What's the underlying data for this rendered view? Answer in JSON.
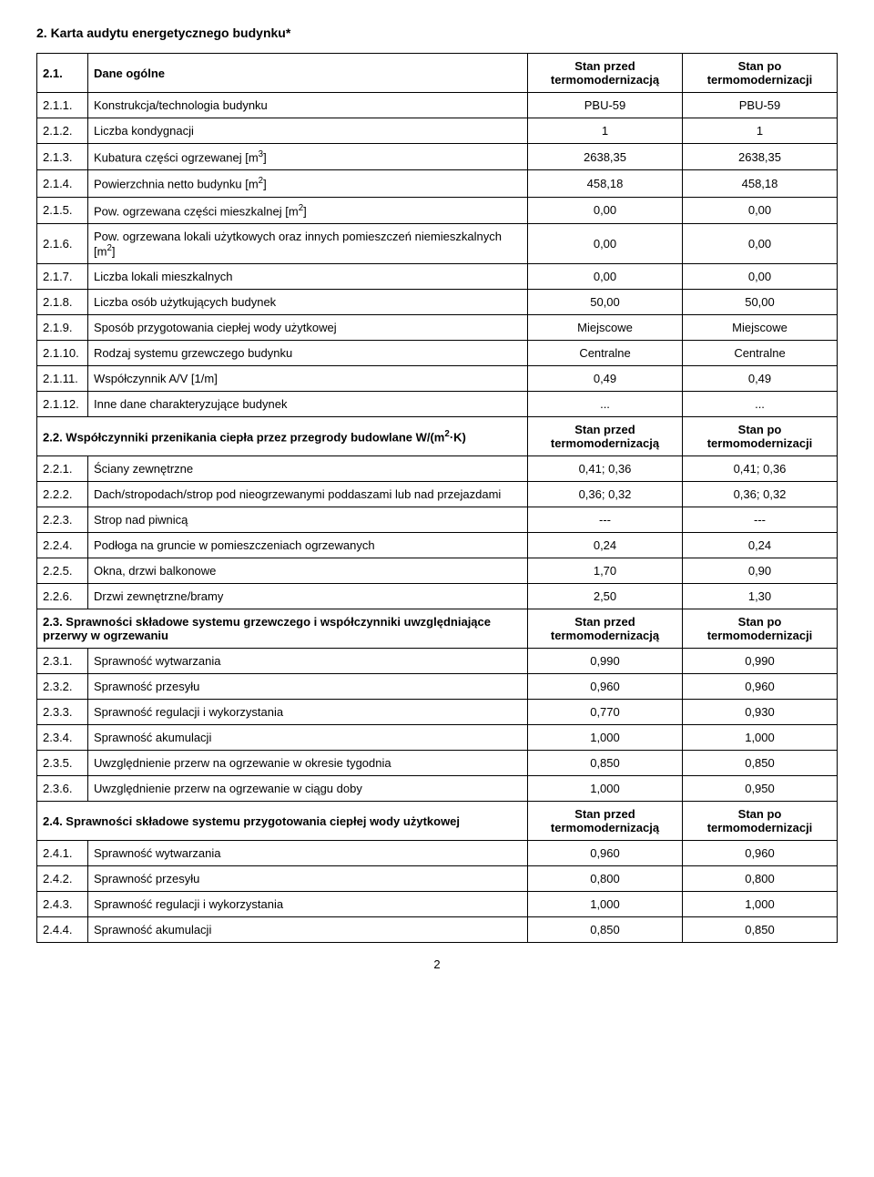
{
  "title": "2. Karta audytu energetycznego budynku*",
  "page_number": "2",
  "header": {
    "before": "Stan przed termomodernizacją",
    "after": "Stan po termomodernizacji"
  },
  "sections": [
    {
      "num": "2.1.",
      "label": "Dane ogólne",
      "rows": [
        {
          "num": "2.1.1.",
          "desc": "Konstrukcja/technologia budynku",
          "before": "PBU-59",
          "after": "PBU-59"
        },
        {
          "num": "2.1.2.",
          "desc": "Liczba kondygnacji",
          "before": "1",
          "after": "1"
        },
        {
          "num": "2.1.3.",
          "desc_html": "Kubatura części ogrzewanej [m<sup>3</sup>]",
          "before": "2638,35",
          "after": "2638,35"
        },
        {
          "num": "2.1.4.",
          "desc_html": "Powierzchnia netto budynku [m<sup>2</sup>]",
          "before": "458,18",
          "after": "458,18"
        },
        {
          "num": "2.1.5.",
          "desc_html": "Pow. ogrzewana części mieszkalnej [m<sup>2</sup>]",
          "before": "0,00",
          "after": "0,00"
        },
        {
          "num": "2.1.6.",
          "desc_html": "Pow. ogrzewana lokali użytkowych oraz innych pomieszczeń niemieszkalnych [m<sup>2</sup>]",
          "before": "0,00",
          "after": "0,00"
        },
        {
          "num": "2.1.7.",
          "desc": "Liczba lokali mieszkalnych",
          "before": "0,00",
          "after": "0,00"
        },
        {
          "num": "2.1.8.",
          "desc": "Liczba osób użytkujących budynek",
          "before": "50,00",
          "after": "50,00"
        },
        {
          "num": "2.1.9.",
          "desc": "Sposób przygotowania ciepłej wody użytkowej",
          "before": "Miejscowe",
          "after": "Miejscowe"
        },
        {
          "num": "2.1.10.",
          "desc": "Rodzaj systemu grzewczego budynku",
          "before": "Centralne",
          "after": "Centralne"
        },
        {
          "num": "2.1.11.",
          "desc": "Współczynnik A/V [1/m]",
          "before": "0,49",
          "after": "0,49"
        },
        {
          "num": "2.1.12.",
          "desc": "Inne dane charakteryzujące budynek",
          "before": "...",
          "after": "..."
        }
      ]
    },
    {
      "num": "2.2.",
      "label_html": "2.2. Współczynniki przenikania ciepła przez przegrody budowlane W/(m<sup>2</sup>·K)",
      "show_header": true,
      "rows": [
        {
          "num": "2.2.1.",
          "desc": "Ściany zewnętrzne",
          "before": "0,41; 0,36",
          "after": "0,41; 0,36"
        },
        {
          "num": "2.2.2.",
          "desc": "Dach/stropodach/strop pod nieogrzewanymi poddaszami lub nad przejazdami",
          "before": "0,36; 0,32",
          "after": "0,36; 0,32"
        },
        {
          "num": "2.2.3.",
          "desc": "Strop nad piwnicą",
          "before": "---",
          "after": "---"
        },
        {
          "num": "2.2.4.",
          "desc": "Podłoga na gruncie w pomieszczeniach ogrzewanych",
          "before": "0,24",
          "after": "0,24"
        },
        {
          "num": "2.2.5.",
          "desc": "Okna, drzwi balkonowe",
          "before": "1,70",
          "after": "0,90"
        },
        {
          "num": "2.2.6.",
          "desc": "Drzwi zewnętrzne/bramy",
          "before": "2,50",
          "after": "1,30"
        }
      ]
    },
    {
      "num": "2.3.",
      "label": "2.3. Sprawności składowe systemu grzewczego i współczynniki uwzględniające przerwy w ogrzewaniu",
      "show_header": true,
      "rows": [
        {
          "num": "2.3.1.",
          "desc": "Sprawność wytwarzania",
          "before": "0,990",
          "after": "0,990"
        },
        {
          "num": "2.3.2.",
          "desc": "Sprawność przesyłu",
          "before": "0,960",
          "after": "0,960"
        },
        {
          "num": "2.3.3.",
          "desc": "Sprawność regulacji i wykorzystania",
          "before": "0,770",
          "after": "0,930"
        },
        {
          "num": "2.3.4.",
          "desc": "Sprawność akumulacji",
          "before": "1,000",
          "after": "1,000"
        },
        {
          "num": "2.3.5.",
          "desc": "Uwzględnienie przerw na ogrzewanie w okresie tygodnia",
          "before": "0,850",
          "after": "0,850"
        },
        {
          "num": "2.3.6.",
          "desc": "Uwzględnienie przerw na ogrzewanie w ciągu doby",
          "before": "1,000",
          "after": "0,950"
        }
      ]
    },
    {
      "num": "2.4.",
      "label": "2.4. Sprawności składowe systemu przygotowania ciepłej wody użytkowej",
      "show_header": true,
      "rows": [
        {
          "num": "2.4.1.",
          "desc": "Sprawność wytwarzania",
          "before": "0,960",
          "after": "0,960"
        },
        {
          "num": "2.4.2.",
          "desc": "Sprawność przesyłu",
          "before": "0,800",
          "after": "0,800"
        },
        {
          "num": "2.4.3.",
          "desc": "Sprawność regulacji i wykorzystania",
          "before": "1,000",
          "after": "1,000"
        },
        {
          "num": "2.4.4.",
          "desc": "Sprawność akumulacji",
          "before": "0,850",
          "after": "0,850"
        }
      ]
    }
  ]
}
